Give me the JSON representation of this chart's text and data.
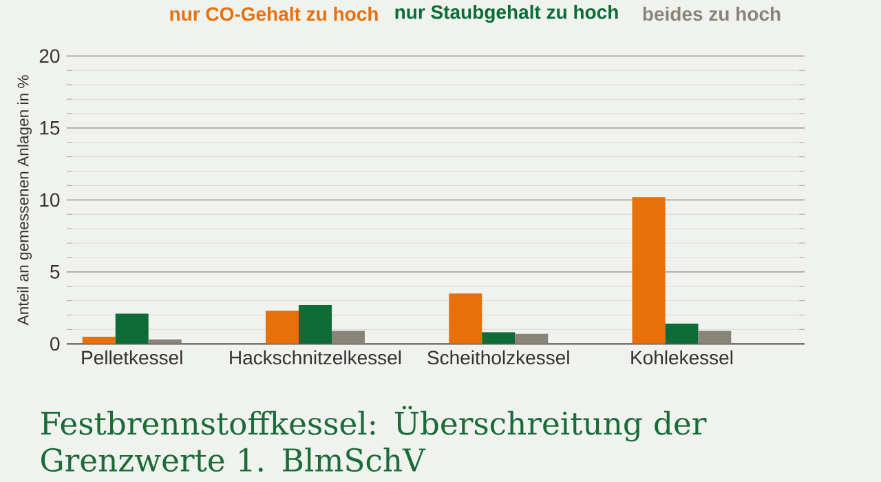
{
  "chart_data": {
    "type": "bar",
    "title": "Festbrennstoffkessel: Überschreitung der Grenzwerte 1. BlmSchV",
    "ylabel": "Anteil an gemessenen Anlagen in %",
    "categories": [
      "Pelletkessel",
      "Hackschnitzelkessel",
      "Scheitholzkessel",
      "Kohlekessel"
    ],
    "series": [
      {
        "name": "nur CO-Gehalt zu hoch",
        "color": "#e8700a",
        "values": [
          0.5,
          2.3,
          3.5,
          10.2
        ]
      },
      {
        "name": "nur Staubgehalt zu hoch",
        "color": "#0d6b35",
        "values": [
          2.1,
          2.7,
          0.8,
          1.4
        ]
      },
      {
        "name": "beides zu hoch",
        "color": "#8a8478",
        "values": [
          0.3,
          0.9,
          0.7,
          0.9
        ]
      }
    ],
    "ylim": [
      0,
      20
    ],
    "yticks": [
      0,
      5,
      10,
      15,
      20
    ],
    "grid": "y",
    "legend": "top"
  }
}
